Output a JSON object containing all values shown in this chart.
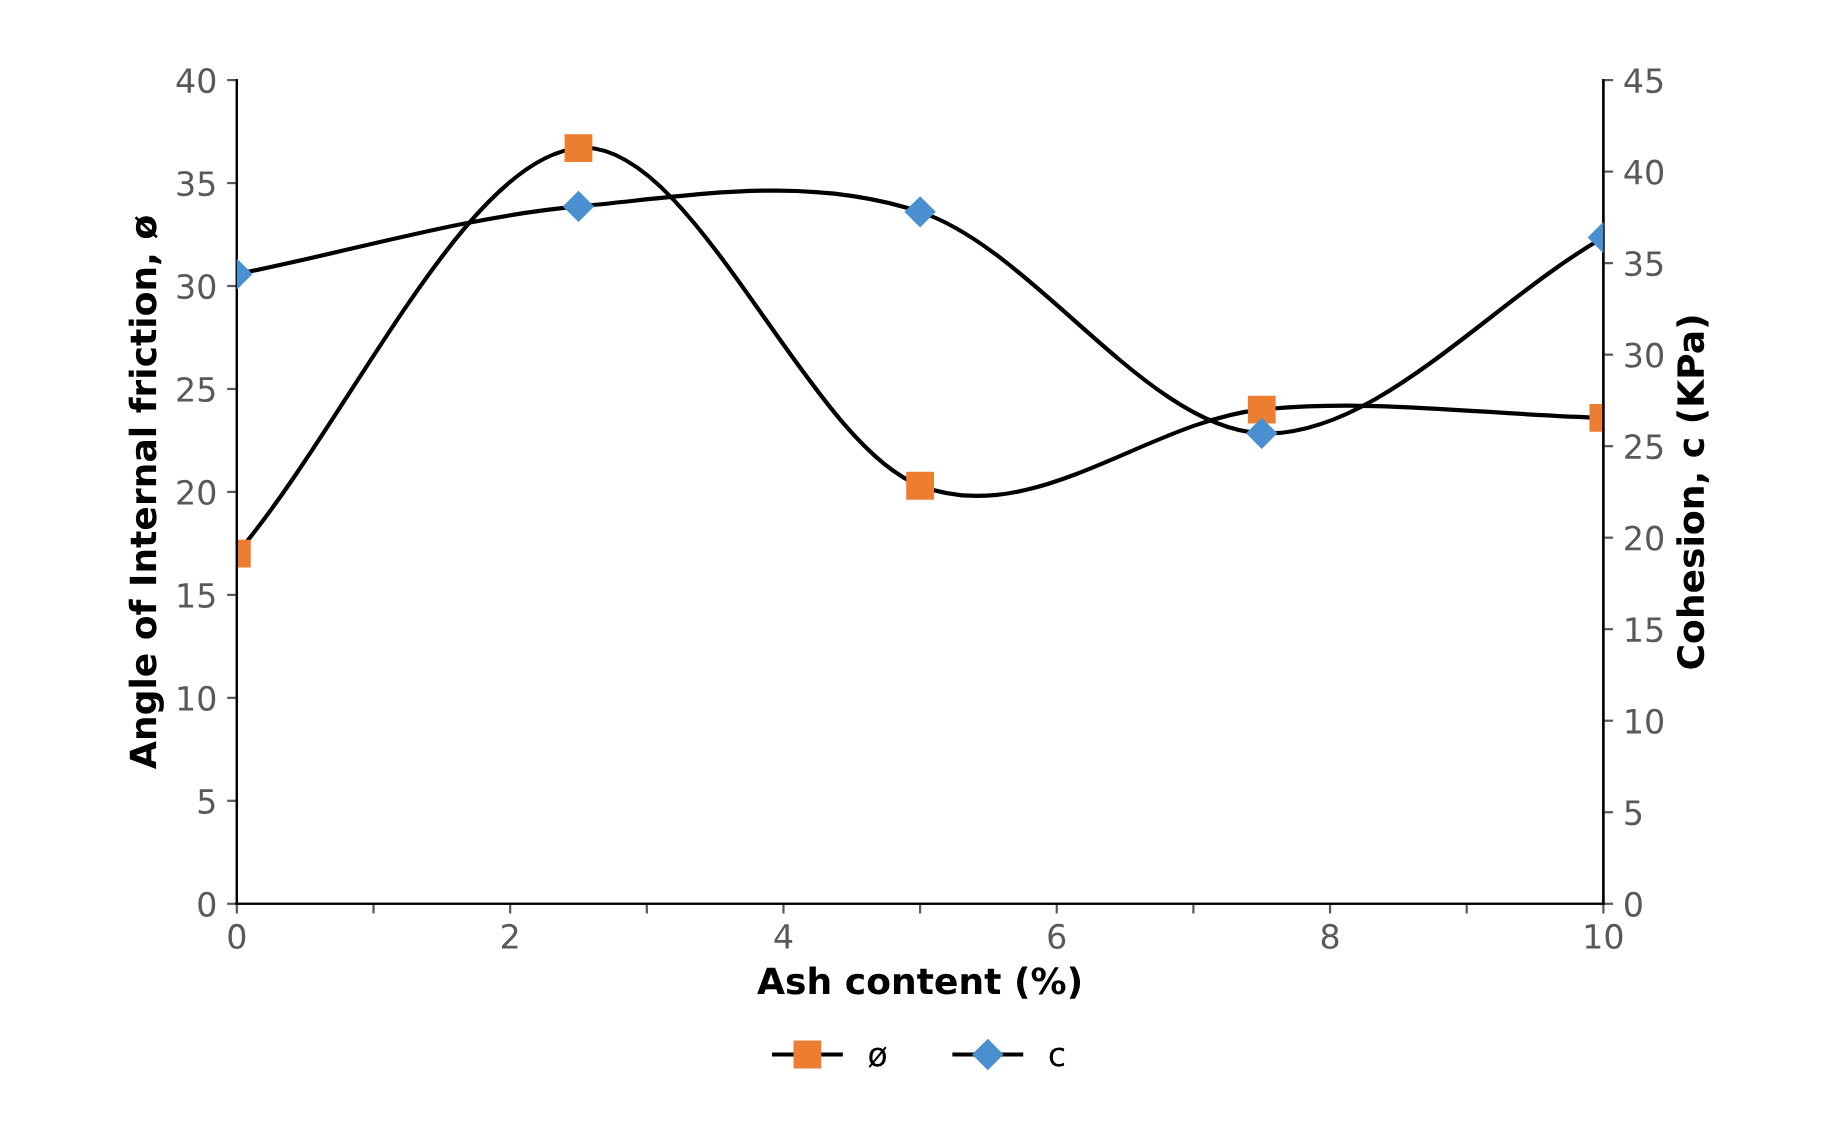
{
  "chart_data": {
    "type": "line",
    "xlabel": "Ash content (%)",
    "ylabel": "Angle of Internal friction, ø",
    "y2label": "Cohesion, c (KPa)",
    "xlim": [
      0,
      10
    ],
    "xticks": [
      0,
      {
        "value": 1,
        "label": null
      },
      2,
      {
        "value": 3,
        "label": null
      },
      4,
      {
        "value": 5,
        "label": null
      },
      6,
      {
        "value": 7,
        "label": null
      },
      8,
      {
        "value": 9,
        "label": null
      },
      10
    ],
    "ylim": [
      0,
      40
    ],
    "yticks": [
      0,
      5,
      10,
      15,
      20,
      25,
      30,
      35,
      40
    ],
    "y2lim": [
      0,
      45
    ],
    "y2ticks": [
      0,
      5,
      10,
      15,
      20,
      25,
      30,
      35,
      40,
      45
    ],
    "grid": false,
    "legend": "bottom",
    "series": [
      {
        "name": "ø",
        "color": "#ed7d31",
        "marker": "square",
        "x": [
          0,
          2.5,
          5,
          7.5,
          10
        ],
        "values": [
          17.0,
          36.7,
          20.3,
          24.0,
          23.6
        ]
      },
      {
        "name": "c",
        "color": "#4a90d0",
        "marker": "diamond",
        "axis": "y2",
        "x": [
          0,
          2.5,
          5,
          7.5,
          10
        ],
        "values": [
          34.4,
          38.1,
          37.8,
          25.7,
          36.4
        ]
      }
    ]
  }
}
